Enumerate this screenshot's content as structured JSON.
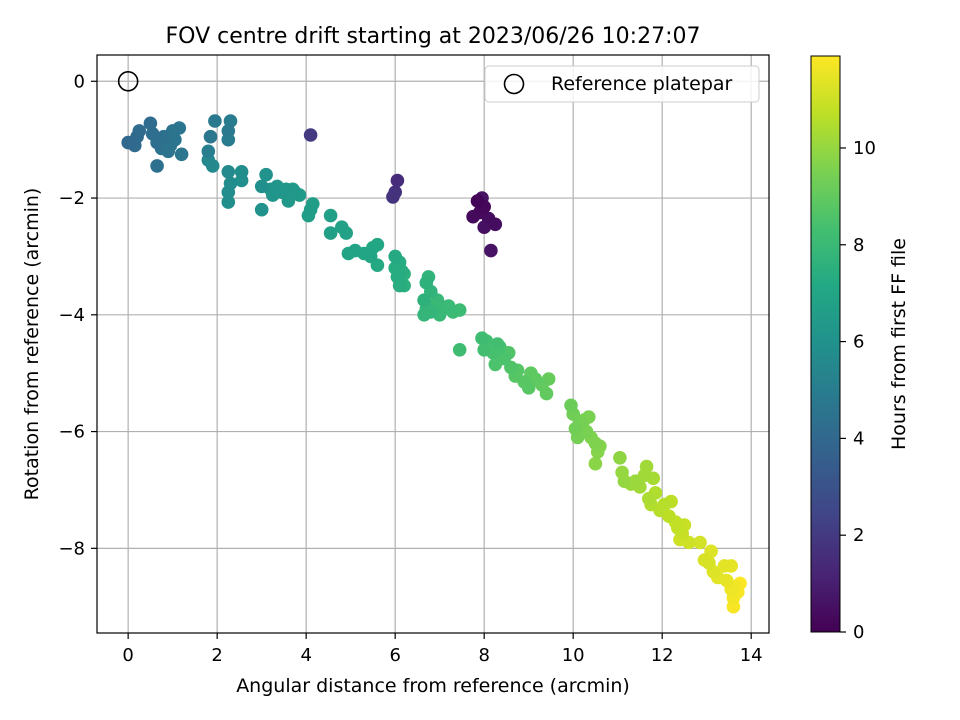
{
  "chart_data": {
    "type": "scatter",
    "title": "FOV centre drift starting at 2023/06/26 10:27:07",
    "xlabel": "Angular distance from reference (arcmin)",
    "ylabel": "Rotation from reference (arcmin)",
    "xlim": [
      -0.7,
      14.4
    ],
    "ylim": [
      -9.45,
      0.45
    ],
    "xticks": [
      0,
      2,
      4,
      6,
      8,
      10,
      12,
      14
    ],
    "yticks": [
      0,
      -2,
      -4,
      -6,
      -8
    ],
    "grid": true,
    "legend": {
      "entries": [
        "Reference platepar"
      ],
      "placement": "top-right"
    },
    "reference_point": {
      "x": 0,
      "y": 0
    },
    "colorbar": {
      "label": "Hours from first FF file",
      "colormap": "viridis",
      "range": [
        0,
        11.9
      ],
      "ticks": [
        0,
        2,
        4,
        6,
        8,
        10
      ]
    },
    "colors": {
      "viridis": [
        "#440154",
        "#482475",
        "#414487",
        "#355f8d",
        "#2a788e",
        "#21918c",
        "#22a884",
        "#44bf70",
        "#7ad151",
        "#bddf26",
        "#fde725"
      ]
    },
    "points": [
      [
        7.85,
        -2.05,
        0.1
      ],
      [
        8.0,
        -2.15,
        0.2
      ],
      [
        7.9,
        -2.25,
        0.3
      ],
      [
        7.75,
        -2.32,
        0.3
      ],
      [
        8.1,
        -2.35,
        0.4
      ],
      [
        8.25,
        -2.45,
        0.4
      ],
      [
        8.0,
        -2.5,
        0.5
      ],
      [
        8.15,
        -2.9,
        0.6
      ],
      [
        7.95,
        -2.0,
        0.6
      ],
      [
        6.05,
        -1.7,
        1.5
      ],
      [
        6.0,
        -1.9,
        1.7
      ],
      [
        5.95,
        -1.98,
        1.8
      ],
      [
        4.1,
        -0.92,
        2.0
      ],
      [
        0.0,
        -1.05,
        4.0
      ],
      [
        0.15,
        -1.1,
        4.1
      ],
      [
        0.2,
        -0.95,
        4.1
      ],
      [
        0.25,
        -0.85,
        4.2
      ],
      [
        0.5,
        -0.72,
        4.2
      ],
      [
        0.55,
        -0.9,
        4.3
      ],
      [
        0.65,
        -1.05,
        4.3
      ],
      [
        0.8,
        -0.95,
        4.4
      ],
      [
        0.65,
        -1.45,
        4.4
      ],
      [
        0.75,
        -1.15,
        4.5
      ],
      [
        0.95,
        -1.1,
        4.5
      ],
      [
        1.0,
        -0.85,
        4.5
      ],
      [
        1.05,
        -1.0,
        4.6
      ],
      [
        1.15,
        -0.8,
        4.6
      ],
      [
        1.2,
        -1.25,
        4.6
      ],
      [
        0.9,
        -1.2,
        4.5
      ],
      [
        1.85,
        -0.95,
        4.7
      ],
      [
        1.95,
        -0.68,
        4.8
      ],
      [
        2.25,
        -0.85,
        4.8
      ],
      [
        2.25,
        -1.0,
        4.9
      ],
      [
        2.3,
        -0.68,
        4.9
      ],
      [
        1.8,
        -1.2,
        5.0
      ],
      [
        1.8,
        -1.35,
        5.5
      ],
      [
        1.9,
        -1.45,
        5.6
      ],
      [
        2.25,
        -1.55,
        5.6
      ],
      [
        2.3,
        -1.75,
        5.7
      ],
      [
        2.25,
        -1.9,
        5.7
      ],
      [
        2.25,
        -2.07,
        5.8
      ],
      [
        2.55,
        -1.55,
        5.8
      ],
      [
        2.55,
        -1.7,
        5.9
      ],
      [
        3.0,
        -1.8,
        5.9
      ],
      [
        3.0,
        -2.2,
        6.0
      ],
      [
        3.1,
        -1.6,
        6.0
      ],
      [
        3.2,
        -1.85,
        6.1
      ],
      [
        3.25,
        -1.95,
        6.1
      ],
      [
        3.35,
        -1.8,
        6.2
      ],
      [
        3.45,
        -1.9,
        6.2
      ],
      [
        3.55,
        -1.85,
        6.2
      ],
      [
        3.6,
        -2.05,
        6.3
      ],
      [
        3.65,
        -1.95,
        6.3
      ],
      [
        3.7,
        -1.85,
        6.4
      ],
      [
        3.85,
        -1.95,
        6.4
      ],
      [
        3.75,
        -1.9,
        6.3
      ],
      [
        4.1,
        -2.2,
        6.5
      ],
      [
        4.15,
        -2.1,
        6.6
      ],
      [
        4.05,
        -2.3,
        6.6
      ],
      [
        4.55,
        -2.3,
        6.7
      ],
      [
        4.55,
        -2.6,
        6.7
      ],
      [
        4.8,
        -2.5,
        6.8
      ],
      [
        4.9,
        -2.6,
        6.8
      ],
      [
        4.95,
        -2.95,
        6.9
      ],
      [
        5.1,
        -2.9,
        6.9
      ],
      [
        5.3,
        -2.95,
        7.0
      ],
      [
        5.45,
        -3.0,
        7.0
      ],
      [
        5.5,
        -2.85,
        7.1
      ],
      [
        5.6,
        -2.8,
        7.1
      ],
      [
        5.6,
        -3.15,
        7.2
      ],
      [
        6.0,
        -3.0,
        7.2
      ],
      [
        6.0,
        -3.2,
        7.3
      ],
      [
        6.05,
        -3.35,
        7.3
      ],
      [
        6.1,
        -3.5,
        7.4
      ],
      [
        6.15,
        -3.25,
        7.4
      ],
      [
        6.2,
        -3.3,
        7.5
      ],
      [
        6.2,
        -3.5,
        7.5
      ],
      [
        6.1,
        -3.1,
        7.3
      ],
      [
        6.65,
        -3.75,
        7.6
      ],
      [
        6.7,
        -3.45,
        7.6
      ],
      [
        6.75,
        -3.35,
        7.7
      ],
      [
        6.8,
        -3.6,
        7.7
      ],
      [
        6.7,
        -3.9,
        7.8
      ],
      [
        6.65,
        -4.0,
        7.8
      ],
      [
        6.85,
        -3.85,
        7.9
      ],
      [
        6.95,
        -3.75,
        7.9
      ],
      [
        7.05,
        -3.9,
        8.0
      ],
      [
        7.2,
        -3.85,
        8.0
      ],
      [
        7.3,
        -3.95,
        8.1
      ],
      [
        7.45,
        -3.92,
        8.1
      ],
      [
        6.8,
        -3.95,
        7.8
      ],
      [
        7.0,
        -4.0,
        7.9
      ],
      [
        7.45,
        -4.6,
        8.2
      ],
      [
        7.95,
        -4.4,
        8.2
      ],
      [
        8.05,
        -4.45,
        8.3
      ],
      [
        8.0,
        -4.6,
        8.3
      ],
      [
        8.2,
        -4.65,
        8.4
      ],
      [
        8.35,
        -4.55,
        8.4
      ],
      [
        8.25,
        -4.85,
        8.5
      ],
      [
        8.45,
        -4.75,
        8.5
      ],
      [
        8.55,
        -4.65,
        8.6
      ],
      [
        8.6,
        -4.9,
        8.6
      ],
      [
        8.7,
        -5.05,
        8.7
      ],
      [
        8.75,
        -4.95,
        8.7
      ],
      [
        8.9,
        -5.15,
        8.8
      ],
      [
        9.0,
        -5.25,
        8.8
      ],
      [
        9.05,
        -5.0,
        8.9
      ],
      [
        9.15,
        -5.1,
        8.9
      ],
      [
        9.3,
        -5.2,
        9.0
      ],
      [
        9.4,
        -5.35,
        9.0
      ],
      [
        9.45,
        -5.1,
        9.1
      ],
      [
        8.3,
        -4.5,
        8.3
      ],
      [
        9.95,
        -5.55,
        9.2
      ],
      [
        10.0,
        -5.7,
        9.3
      ],
      [
        10.05,
        -5.95,
        9.3
      ],
      [
        10.15,
        -5.85,
        9.4
      ],
      [
        10.1,
        -6.1,
        9.4
      ],
      [
        10.25,
        -5.8,
        9.5
      ],
      [
        10.3,
        -6.0,
        9.5
      ],
      [
        10.4,
        -6.1,
        9.6
      ],
      [
        10.5,
        -6.2,
        9.6
      ],
      [
        10.55,
        -6.35,
        9.7
      ],
      [
        10.6,
        -6.25,
        9.7
      ],
      [
        10.5,
        -6.55,
        9.8
      ],
      [
        10.35,
        -5.75,
        9.5
      ],
      [
        11.05,
        -6.45,
        9.9
      ],
      [
        11.1,
        -6.7,
        10.0
      ],
      [
        11.15,
        -6.85,
        10.0
      ],
      [
        11.3,
        -6.9,
        10.1
      ],
      [
        11.4,
        -6.85,
        10.1
      ],
      [
        11.5,
        -6.95,
        10.2
      ],
      [
        11.6,
        -6.75,
        10.2
      ],
      [
        11.8,
        -6.8,
        10.3
      ],
      [
        11.65,
        -6.6,
        10.2
      ],
      [
        11.7,
        -7.15,
        10.4
      ],
      [
        11.75,
        -7.25,
        10.5
      ],
      [
        11.85,
        -7.05,
        10.5
      ],
      [
        11.95,
        -7.35,
        10.6
      ],
      [
        12.05,
        -7.25,
        10.6
      ],
      [
        12.15,
        -7.45,
        10.7
      ],
      [
        12.2,
        -7.2,
        10.7
      ],
      [
        12.3,
        -7.55,
        10.8
      ],
      [
        12.35,
        -7.65,
        10.8
      ],
      [
        12.45,
        -7.75,
        10.9
      ],
      [
        12.5,
        -7.6,
        10.9
      ],
      [
        12.4,
        -7.85,
        11.0
      ],
      [
        12.6,
        -7.9,
        11.0
      ],
      [
        12.85,
        -7.9,
        11.1
      ],
      [
        12.95,
        -8.2,
        11.2
      ],
      [
        13.05,
        -8.25,
        11.2
      ],
      [
        13.1,
        -8.05,
        11.3
      ],
      [
        13.15,
        -8.4,
        11.3
      ],
      [
        13.25,
        -8.5,
        11.4
      ],
      [
        13.4,
        -8.3,
        11.4
      ],
      [
        13.45,
        -8.55,
        11.5
      ],
      [
        13.55,
        -8.3,
        11.5
      ],
      [
        13.55,
        -8.7,
        11.6
      ],
      [
        13.6,
        -8.85,
        11.7
      ],
      [
        13.65,
        -8.65,
        11.7
      ],
      [
        13.7,
        -8.75,
        11.8
      ],
      [
        13.6,
        -9.0,
        11.8
      ],
      [
        13.75,
        -8.6,
        11.9
      ]
    ]
  }
}
